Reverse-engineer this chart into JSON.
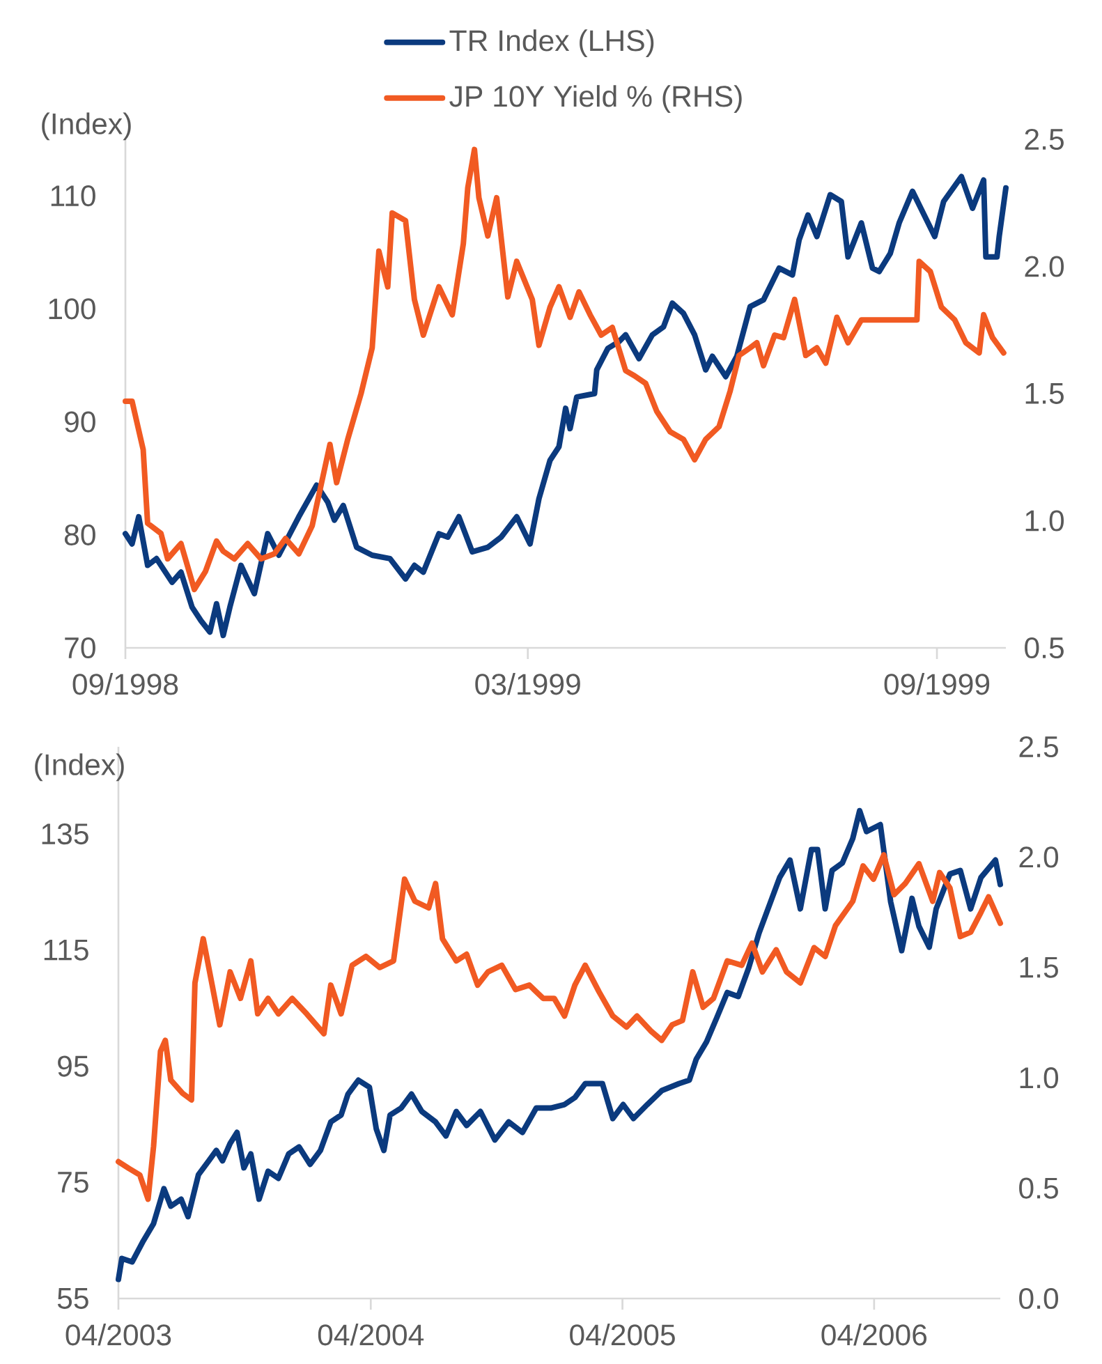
{
  "chart_data": [
    {
      "type": "line",
      "ylabel": "(Index)",
      "legend": "top",
      "xlim": [
        "1998-09-01",
        "1999-10-02"
      ],
      "xticks": [
        {
          "value": "1998-09-01",
          "label": "09/1998"
        },
        {
          "value": "1999-03-01",
          "label": "03/1999"
        },
        {
          "value": "1999-09-01",
          "label": "09/1999"
        }
      ],
      "ylim": [
        70,
        115
      ],
      "yticks": [
        70,
        80,
        90,
        100,
        110
      ],
      "y2lim": [
        0.5,
        2.5
      ],
      "y2ticks": [
        0.5,
        {
          "value": 1,
          "label": "1.0"
        },
        1.5,
        {
          "value": 2,
          "label": "2.0"
        },
        2.5
      ],
      "series": [
        {
          "name": "TR Index (LHS)",
          "color": "#0b3a7e",
          "x": [
            "1998-09-01",
            "1998-09-04",
            "1998-09-07",
            "1998-09-11",
            "1998-09-15",
            "1998-09-22",
            "1998-09-26",
            "1998-10-01",
            "1998-10-05",
            "1998-10-09",
            "1998-10-12",
            "1998-10-15",
            "1998-10-18",
            "1998-10-23",
            "1998-10-29",
            "1998-11-04",
            "1998-11-09",
            "1998-11-18",
            "1998-11-26",
            "1998-12-01",
            "1998-12-04",
            "1998-12-08",
            "1998-12-14",
            "1998-12-21",
            "1998-12-29",
            "1999-01-05",
            "1999-01-09",
            "1999-01-13",
            "1999-01-20",
            "1999-01-24",
            "1999-01-29",
            "1999-02-04",
            "1999-02-11",
            "1999-02-17",
            "1999-02-24",
            "1999-03-02",
            "1999-03-06",
            "1999-03-11",
            "1999-03-15",
            "1999-03-18",
            "1999-03-20",
            "1999-03-23",
            "1999-03-31",
            "1999-04-01",
            "1999-04-06",
            "1999-04-11",
            "1999-04-14",
            "1999-04-20",
            "1999-04-26",
            "1999-05-01",
            "1999-05-05",
            "1999-05-10",
            "1999-05-15",
            "1999-05-20",
            "1999-05-23",
            "1999-05-29",
            "1999-06-03",
            "1999-06-09",
            "1999-06-15",
            "1999-06-22",
            "1999-06-28",
            "1999-07-01",
            "1999-07-05",
            "1999-07-09",
            "1999-07-15",
            "1999-07-20",
            "1999-07-23",
            "1999-07-29",
            "1999-08-03",
            "1999-08-06",
            "1999-08-11",
            "1999-08-15",
            "1999-08-21",
            "1999-08-28",
            "1999-08-31",
            "1999-09-04",
            "1999-09-12",
            "1999-09-17",
            "1999-09-22",
            "1999-09-23",
            "1999-09-28",
            "1999-09-29",
            "1999-10-02"
          ],
          "values": [
            80.1,
            79.2,
            81.6,
            77.3,
            77.9,
            75.8,
            76.7,
            73.6,
            72.4,
            71.4,
            73.9,
            71.1,
            73.6,
            77.3,
            74.8,
            80.1,
            78.2,
            81.6,
            84.4,
            82.9,
            81.3,
            82.6,
            78.9,
            78.2,
            77.9,
            76.1,
            77.3,
            76.7,
            80.1,
            79.8,
            81.6,
            78.5,
            78.9,
            79.8,
            81.6,
            79.2,
            83.2,
            86.6,
            87.8,
            91.2,
            89.4,
            92.2,
            92.5,
            94.6,
            96.5,
            97.1,
            97.7,
            95.6,
            97.7,
            98.4,
            100.5,
            99.6,
            97.7,
            94.6,
            95.8,
            94.0,
            95.8,
            100.2,
            100.8,
            103.6,
            103.0,
            106.1,
            108.3,
            106.4,
            110.1,
            109.5,
            104.6,
            107.6,
            103.6,
            103.3,
            104.9,
            107.6,
            110.4,
            107.6,
            106.4,
            109.5,
            111.7,
            108.9,
            111.4,
            104.6,
            104.6,
            106.4,
            110.7
          ]
        },
        {
          "name": "JP 10Y Yield % (RHS)",
          "color": "#f15a22",
          "axis": "y2",
          "x": [
            "1998-09-01",
            "1998-09-04",
            "1998-09-09",
            "1998-09-11",
            "1998-09-17",
            "1998-09-20",
            "1998-09-26",
            "1998-09-29",
            "1998-10-02",
            "1998-10-07",
            "1998-10-12",
            "1998-10-15",
            "1998-10-20",
            "1998-10-26",
            "1998-11-01",
            "1998-11-07",
            "1998-11-12",
            "1998-11-18",
            "1998-11-24",
            "1998-12-02",
            "1998-12-05",
            "1998-12-10",
            "1998-12-16",
            "1998-12-21",
            "1998-12-24",
            "1998-12-28",
            "1998-12-30",
            "1999-01-05",
            "1999-01-09",
            "1999-01-13",
            "1999-01-20",
            "1999-01-26",
            "1999-01-31",
            "1999-02-02",
            "1999-02-05",
            "1999-02-07",
            "1999-02-11",
            "1999-02-15",
            "1999-02-20",
            "1999-02-24",
            "1999-03-03",
            "1999-03-06",
            "1999-03-11",
            "1999-03-15",
            "1999-03-20",
            "1999-03-24",
            "1999-03-29",
            "1999-04-03",
            "1999-04-08",
            "1999-04-14",
            "1999-04-18",
            "1999-04-23",
            "1999-04-28",
            "1999-05-04",
            "1999-05-10",
            "1999-05-15",
            "1999-05-20",
            "1999-05-26",
            "1999-05-31",
            "1999-06-04",
            "1999-06-09",
            "1999-06-12",
            "1999-06-15",
            "1999-06-20",
            "1999-06-24",
            "1999-06-29",
            "1999-07-04",
            "1999-07-09",
            "1999-07-13",
            "1999-07-18",
            "1999-07-23",
            "1999-07-29",
            "1999-08-23",
            "1999-08-24",
            "1999-08-29",
            "1999-09-03",
            "1999-09-09",
            "1999-09-14",
            "1999-09-20",
            "1999-09-22",
            "1999-09-26",
            "1999-10-01"
          ],
          "values": [
            1.47,
            1.47,
            1.28,
            0.99,
            0.95,
            0.85,
            0.91,
            0.82,
            0.73,
            0.8,
            0.92,
            0.88,
            0.85,
            0.91,
            0.85,
            0.87,
            0.93,
            0.87,
            0.98,
            1.3,
            1.15,
            1.32,
            1.5,
            1.68,
            2.06,
            1.92,
            2.21,
            2.18,
            1.87,
            1.73,
            1.92,
            1.81,
            2.09,
            2.31,
            2.46,
            2.27,
            2.12,
            2.27,
            1.88,
            2.02,
            1.87,
            1.69,
            1.84,
            1.92,
            1.8,
            1.9,
            1.81,
            1.73,
            1.76,
            1.59,
            1.57,
            1.54,
            1.43,
            1.35,
            1.32,
            1.24,
            1.32,
            1.37,
            1.51,
            1.65,
            1.68,
            1.7,
            1.61,
            1.73,
            1.72,
            1.87,
            1.65,
            1.68,
            1.62,
            1.8,
            1.7,
            1.79,
            1.79,
            2.02,
            1.98,
            1.84,
            1.79,
            1.7,
            1.66,
            1.81,
            1.72,
            1.66
          ]
        }
      ]
    },
    {
      "type": "line",
      "ylabel": "(Index)",
      "xlim": [
        "2003-04-01",
        "2006-10-01"
      ],
      "xticks": [
        {
          "value": "2003-04-01",
          "label": "04/2003"
        },
        {
          "value": "2004-04-01",
          "label": "04/2004"
        },
        {
          "value": "2005-04-01",
          "label": "04/2005"
        },
        {
          "value": "2006-04-01",
          "label": "04/2006"
        }
      ],
      "ylim": [
        55,
        150
      ],
      "yticks": [
        55,
        75,
        95,
        115,
        135
      ],
      "y2lim": [
        0,
        2.5
      ],
      "y2ticks": [
        {
          "value": 0,
          "label": "0.0"
        },
        0.5,
        {
          "value": 1,
          "label": "1.0"
        },
        1.5,
        {
          "value": 2,
          "label": "2.0"
        },
        2.5
      ],
      "series": [
        {
          "color": "#0b3a7e",
          "x": [
            "2003-04-01",
            "2003-04-06",
            "2003-04-21",
            "2003-05-07",
            "2003-05-22",
            "2003-06-06",
            "2003-06-16",
            "2003-07-01",
            "2003-07-11",
            "2003-07-26",
            "2003-08-10",
            "2003-08-21",
            "2003-08-30",
            "2003-09-10",
            "2003-09-20",
            "2003-09-30",
            "2003-10-10",
            "2003-10-22",
            "2003-11-04",
            "2003-11-19",
            "2003-12-04",
            "2003-12-19",
            "2004-01-04",
            "2004-01-19",
            "2004-02-03",
            "2004-02-18",
            "2004-02-28",
            "2004-03-14",
            "2004-03-30",
            "2004-04-09",
            "2004-04-20",
            "2004-04-29",
            "2004-05-15",
            "2004-05-30",
            "2004-06-14",
            "2004-07-04",
            "2004-07-19",
            "2004-08-03",
            "2004-08-18",
            "2004-09-07",
            "2004-09-28",
            "2004-10-18",
            "2004-11-07",
            "2004-11-27",
            "2004-12-18",
            "2005-01-07",
            "2005-01-22",
            "2005-02-06",
            "2005-03-03",
            "2005-03-18",
            "2005-04-02",
            "2005-04-17",
            "2005-05-07",
            "2005-05-28",
            "2005-06-22",
            "2005-07-07",
            "2005-07-17",
            "2005-08-01",
            "2005-08-16",
            "2005-08-31",
            "2005-09-16",
            "2005-10-01",
            "2005-10-16",
            "2005-10-31",
            "2005-11-15",
            "2005-11-30",
            "2005-12-15",
            "2005-12-31",
            "2006-01-09",
            "2006-01-20",
            "2006-01-30",
            "2006-02-14",
            "2006-03-01",
            "2006-03-11",
            "2006-03-21",
            "2006-04-10",
            "2006-04-25",
            "2006-05-11",
            "2006-05-26",
            "2006-06-05",
            "2006-06-20",
            "2006-06-30",
            "2006-07-20",
            "2006-08-04",
            "2006-08-19",
            "2006-09-03",
            "2006-09-24",
            "2006-10-01"
          ],
          "values": [
            58.3,
            61.9,
            61.3,
            64.9,
            67.9,
            73.9,
            70.9,
            72.1,
            69.1,
            76.3,
            78.7,
            80.5,
            78.7,
            81.7,
            83.6,
            77.5,
            79.9,
            72.1,
            76.9,
            75.7,
            79.9,
            81.1,
            78.1,
            80.5,
            85.4,
            86.6,
            90.2,
            92.6,
            91.4,
            84.2,
            80.5,
            86.6,
            87.8,
            90.2,
            87.2,
            85.4,
            83.0,
            87.2,
            84.8,
            87.2,
            82.3,
            85.4,
            83.6,
            87.8,
            87.8,
            88.4,
            89.6,
            92.0,
            92.0,
            86.0,
            88.4,
            86.0,
            88.4,
            90.8,
            92.0,
            92.6,
            96.2,
            99.2,
            103.4,
            107.7,
            107.0,
            111.9,
            117.9,
            122.7,
            127.5,
            130.5,
            122.1,
            132.3,
            132.3,
            122.1,
            128.7,
            130.0,
            134.2,
            139.0,
            135.4,
            136.6,
            123.3,
            114.9,
            123.9,
            119.1,
            115.5,
            122.1,
            128.1,
            128.7,
            122.1,
            127.5,
            130.5,
            126.3
          ]
        },
        {
          "color": "#f15a22",
          "axis": "y2",
          "x": [
            "2003-04-01",
            "2003-04-16",
            "2003-05-02",
            "2003-05-14",
            "2003-05-22",
            "2003-06-01",
            "2003-06-08",
            "2003-06-16",
            "2003-07-03",
            "2003-07-16",
            "2003-07-21",
            "2003-08-02",
            "2003-08-15",
            "2003-08-26",
            "2003-09-10",
            "2003-09-25",
            "2003-10-10",
            "2003-10-20",
            "2003-11-04",
            "2003-11-19",
            "2003-12-09",
            "2003-12-30",
            "2004-01-24",
            "2004-02-03",
            "2004-02-18",
            "2004-03-05",
            "2004-03-25",
            "2004-04-14",
            "2004-05-04",
            "2004-05-20",
            "2004-06-04",
            "2004-06-24",
            "2004-07-04",
            "2004-07-14",
            "2004-08-03",
            "2004-08-18",
            "2004-09-03",
            "2004-09-18",
            "2004-10-08",
            "2004-10-28",
            "2004-11-17",
            "2004-12-07",
            "2004-12-23",
            "2005-01-07",
            "2005-01-22",
            "2005-02-06",
            "2005-02-26",
            "2005-03-18",
            "2005-04-07",
            "2005-04-22",
            "2005-05-13",
            "2005-05-28",
            "2005-06-12",
            "2005-06-27",
            "2005-07-12",
            "2005-07-27",
            "2005-08-11",
            "2005-08-31",
            "2005-09-21",
            "2005-10-06",
            "2005-10-21",
            "2005-11-10",
            "2005-11-25",
            "2005-12-15",
            "2006-01-04",
            "2006-01-20",
            "2006-02-04",
            "2006-03-01",
            "2006-03-16",
            "2006-03-31",
            "2006-04-15",
            "2006-04-30",
            "2006-05-16",
            "2006-06-05",
            "2006-06-25",
            "2006-07-05",
            "2006-07-20",
            "2006-08-04",
            "2006-08-19",
            "2006-09-03",
            "2006-09-14",
            "2006-10-01"
          ],
          "values": [
            0.62,
            0.59,
            0.56,
            0.45,
            0.69,
            1.12,
            1.17,
            0.99,
            0.93,
            0.9,
            1.43,
            1.63,
            1.42,
            1.24,
            1.48,
            1.36,
            1.53,
            1.29,
            1.36,
            1.29,
            1.36,
            1.29,
            1.2,
            1.42,
            1.29,
            1.51,
            1.55,
            1.5,
            1.53,
            1.9,
            1.8,
            1.77,
            1.88,
            1.63,
            1.53,
            1.56,
            1.42,
            1.48,
            1.51,
            1.4,
            1.42,
            1.36,
            1.36,
            1.28,
            1.42,
            1.51,
            1.39,
            1.28,
            1.23,
            1.28,
            1.21,
            1.17,
            1.24,
            1.26,
            1.48,
            1.32,
            1.36,
            1.53,
            1.51,
            1.61,
            1.48,
            1.58,
            1.48,
            1.43,
            1.59,
            1.55,
            1.69,
            1.8,
            1.96,
            1.9,
            2.01,
            1.83,
            1.88,
            1.97,
            1.8,
            1.93,
            1.86,
            1.64,
            1.66,
            1.75,
            1.82,
            1.7
          ]
        }
      ]
    }
  ]
}
